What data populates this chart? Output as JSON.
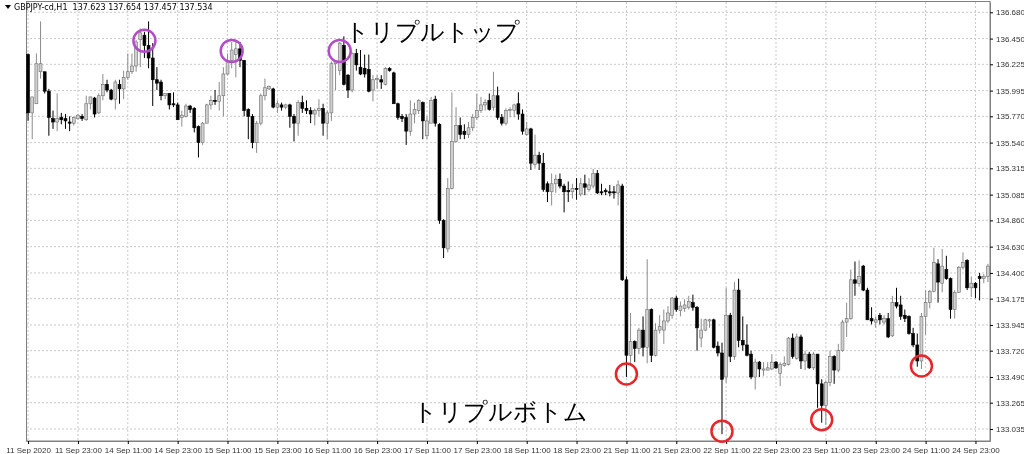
{
  "chart_data": {
    "type": "candlestick",
    "title": "GBPJPY-cd,H1  137.623 137.654 137.457 137.534",
    "annotations": [
      "トリプルトップ",
      "トリプルボトム"
    ],
    "categories": [
      "11 Sep 2020",
      null,
      null,
      null,
      null,
      null,
      null,
      null,
      null,
      null,
      null,
      null,
      "11 Sep 23:00",
      null,
      null,
      null,
      null,
      null,
      null,
      null,
      null,
      null,
      null,
      null,
      "14 Sep 11:00",
      null,
      null,
      null,
      null,
      null,
      null,
      null,
      null,
      null,
      null,
      null,
      "14 Sep 23:00",
      null,
      null,
      null,
      null,
      null,
      null,
      null,
      null,
      null,
      null,
      null,
      "15 Sep 11:00",
      null,
      null,
      null,
      null,
      null,
      null,
      null,
      null,
      null,
      null,
      null,
      "15 Sep 23:00",
      null,
      null,
      null,
      null,
      null,
      null,
      null,
      null,
      null,
      null,
      null,
      "16 Sep 11:00",
      null,
      null,
      null,
      null,
      null,
      null,
      null,
      null,
      null,
      null,
      null,
      "16 Sep 23:00",
      null,
      null,
      null,
      null,
      null,
      null,
      null,
      null,
      null,
      null,
      null,
      "17 Sep 11:00",
      null,
      null,
      null,
      null,
      null,
      null,
      null,
      null,
      null,
      null,
      null,
      "17 Sep 23:00",
      null,
      null,
      null,
      null,
      null,
      null,
      null,
      null,
      null,
      null,
      null,
      "18 Sep 11:00",
      null,
      null,
      null,
      null,
      null,
      null,
      null,
      null,
      null,
      null,
      null,
      "18 Sep 23:00",
      null,
      null,
      null,
      null,
      null,
      null,
      null,
      null,
      null,
      null,
      null,
      "21 Sep 11:00",
      null,
      null,
      null,
      null,
      null,
      null,
      null,
      null,
      null,
      null,
      null,
      "21 Sep 23:00",
      null,
      null,
      null,
      null,
      null,
      null,
      null,
      null,
      null,
      null,
      null,
      "22 Sep 11:00",
      null,
      null,
      null,
      null,
      null,
      null,
      null,
      null,
      null,
      null,
      null,
      "22 Sep 23:00",
      null,
      null,
      null,
      null,
      null,
      null,
      null,
      null,
      null,
      null,
      null,
      "23 Sep 11:00",
      null,
      null,
      null,
      null,
      null,
      null,
      null,
      null,
      null,
      null,
      null,
      "23 Sep 23:00",
      null,
      null,
      null,
      null,
      null,
      null,
      null,
      null,
      null,
      null,
      null,
      "24 Sep 11:00",
      null,
      null,
      null,
      null,
      null,
      null,
      null,
      null,
      null,
      null,
      null,
      "24 Sep 23:00",
      null,
      null,
      null
    ],
    "ohlc": [
      [
        136.31,
        136.32,
        135.73,
        135.8
      ],
      [
        135.8,
        135.94,
        135.57,
        135.94
      ],
      [
        135.88,
        136.32,
        135.88,
        136.23
      ],
      [
        136.16,
        136.6,
        136.1,
        136.23
      ],
      [
        136.16,
        136.16,
        135.97,
        135.99
      ],
      [
        135.99,
        136.01,
        135.6,
        135.76
      ],
      [
        135.75,
        135.82,
        135.66,
        135.72
      ],
      [
        135.72,
        135.97,
        135.64,
        135.75
      ],
      [
        135.76,
        135.8,
        135.7,
        135.74
      ],
      [
        135.75,
        135.79,
        135.66,
        135.73
      ],
      [
        135.72,
        135.77,
        135.64,
        135.71
      ],
      [
        135.71,
        135.77,
        135.69,
        135.76
      ],
      [
        135.75,
        135.79,
        135.74,
        135.78
      ],
      [
        135.77,
        135.79,
        135.73,
        135.75
      ],
      [
        135.74,
        135.95,
        135.73,
        135.88
      ],
      [
        135.88,
        135.94,
        135.83,
        135.94
      ],
      [
        135.93,
        135.94,
        135.76,
        135.79
      ],
      [
        135.8,
        135.97,
        135.79,
        135.95
      ],
      [
        135.95,
        136.14,
        135.91,
        136.05
      ],
      [
        136.05,
        136.09,
        135.98,
        136.0
      ],
      [
        136.0,
        136.01,
        135.91,
        135.92
      ],
      [
        135.92,
        136.09,
        135.83,
        136.07
      ],
      [
        136.05,
        136.09,
        135.88,
        136.01
      ],
      [
        136.01,
        136.17,
        135.92,
        136.11
      ],
      [
        136.11,
        136.32,
        136.09,
        136.16
      ],
      [
        136.16,
        136.32,
        136.14,
        136.21
      ],
      [
        136.21,
        136.44,
        136.16,
        136.42
      ],
      [
        136.44,
        136.54,
        136.2,
        136.5
      ],
      [
        136.48,
        136.51,
        136.28,
        136.39
      ],
      [
        136.39,
        136.6,
        136.19,
        136.28
      ],
      [
        136.28,
        136.41,
        135.86,
        136.09
      ],
      [
        136.09,
        136.2,
        136.0,
        136.06
      ],
      [
        136.07,
        136.09,
        135.91,
        135.95
      ],
      [
        135.95,
        135.97,
        135.92,
        135.97
      ],
      [
        135.97,
        135.97,
        135.83,
        135.87
      ],
      [
        135.88,
        135.98,
        135.85,
        135.87
      ],
      [
        135.87,
        135.89,
        135.74,
        135.74
      ],
      [
        135.76,
        135.82,
        135.68,
        135.78
      ],
      [
        135.77,
        135.88,
        135.76,
        135.86
      ],
      [
        135.86,
        135.87,
        135.8,
        135.83
      ],
      [
        135.84,
        135.85,
        135.63,
        135.67
      ],
      [
        135.68,
        135.69,
        135.41,
        135.54
      ],
      [
        135.54,
        135.72,
        135.52,
        135.71
      ],
      [
        135.71,
        135.88,
        135.71,
        135.87
      ],
      [
        135.87,
        135.95,
        135.83,
        135.91
      ],
      [
        135.91,
        136.0,
        135.87,
        135.9
      ],
      [
        135.9,
        136.07,
        135.82,
        135.95
      ],
      [
        135.95,
        136.2,
        135.77,
        136.14
      ],
      [
        136.14,
        136.32,
        136.13,
        136.26
      ],
      [
        136.26,
        136.42,
        136.19,
        136.35
      ],
      [
        136.31,
        136.44,
        136.11,
        136.36
      ],
      [
        136.36,
        136.42,
        136.2,
        136.26
      ],
      [
        136.26,
        136.26,
        135.77,
        135.82
      ],
      [
        135.83,
        135.84,
        135.57,
        135.77
      ],
      [
        135.77,
        135.79,
        135.49,
        135.54
      ],
      [
        135.54,
        135.73,
        135.45,
        135.71
      ],
      [
        135.71,
        135.97,
        135.69,
        135.95
      ],
      [
        135.95,
        136.1,
        135.91,
        136.02
      ],
      [
        136.01,
        136.04,
        136.0,
        136.03
      ],
      [
        136.01,
        136.02,
        135.84,
        135.85
      ],
      [
        135.85,
        135.91,
        135.8,
        135.88
      ],
      [
        135.87,
        135.89,
        135.82,
        135.85
      ],
      [
        135.85,
        135.88,
        135.83,
        135.87
      ],
      [
        135.87,
        135.88,
        135.67,
        135.77
      ],
      [
        135.77,
        135.79,
        135.55,
        135.71
      ],
      [
        135.71,
        135.91,
        135.6,
        135.89
      ],
      [
        135.89,
        135.95,
        135.8,
        135.84
      ],
      [
        135.84,
        135.91,
        135.79,
        135.82
      ],
      [
        135.82,
        135.85,
        135.71,
        135.79
      ],
      [
        135.79,
        135.84,
        135.69,
        135.82
      ],
      [
        135.82,
        135.92,
        135.77,
        135.84
      ],
      [
        135.84,
        135.88,
        135.6,
        135.71
      ],
      [
        135.71,
        135.82,
        135.57,
        135.8
      ],
      [
        135.8,
        136.25,
        135.73,
        136.23
      ],
      [
        136.23,
        136.26,
        136.0,
        136.25
      ],
      [
        136.17,
        136.42,
        136.13,
        136.41
      ],
      [
        136.39,
        136.47,
        136.04,
        136.05
      ],
      [
        136.13,
        136.14,
        135.93,
        136.0
      ],
      [
        136.0,
        136.33,
        135.98,
        136.32
      ],
      [
        136.32,
        136.36,
        136.17,
        136.22
      ],
      [
        136.2,
        136.35,
        136.13,
        136.14
      ],
      [
        136.19,
        136.31,
        136.11,
        136.14
      ],
      [
        136.18,
        136.31,
        135.98,
        135.99
      ],
      [
        136.0,
        136.13,
        135.9,
        136.09
      ],
      [
        136.09,
        136.13,
        136.01,
        136.1
      ],
      [
        136.09,
        136.13,
        136.01,
        136.07
      ],
      [
        136.05,
        136.2,
        136.04,
        136.19
      ],
      [
        136.19,
        136.2,
        136.16,
        136.17
      ],
      [
        136.15,
        136.16,
        135.88,
        135.88
      ],
      [
        135.88,
        135.89,
        135.74,
        135.76
      ],
      [
        135.77,
        135.79,
        135.72,
        135.75
      ],
      [
        135.76,
        135.79,
        135.52,
        135.64
      ],
      [
        135.64,
        135.91,
        135.6,
        135.79
      ],
      [
        135.79,
        135.89,
        135.71,
        135.83
      ],
      [
        135.82,
        135.92,
        135.79,
        135.91
      ],
      [
        135.89,
        135.9,
        135.57,
        135.73
      ],
      [
        135.6,
        135.77,
        135.57,
        135.73
      ],
      [
        135.71,
        135.94,
        135.71,
        135.91
      ],
      [
        135.92,
        135.95,
        135.68,
        135.71
      ],
      [
        135.7,
        135.71,
        134.83,
        134.86
      ],
      [
        134.86,
        134.87,
        134.53,
        134.62
      ],
      [
        134.61,
        135.23,
        134.58,
        135.14
      ],
      [
        135.14,
        135.98,
        135.13,
        135.55
      ],
      [
        135.55,
        135.85,
        135.54,
        135.69
      ],
      [
        135.69,
        135.76,
        135.57,
        135.61
      ],
      [
        135.64,
        135.7,
        135.57,
        135.61
      ],
      [
        135.61,
        135.72,
        135.58,
        135.67
      ],
      [
        135.67,
        135.79,
        135.64,
        135.76
      ],
      [
        135.76,
        135.97,
        135.74,
        135.82
      ],
      [
        135.82,
        135.94,
        135.8,
        135.87
      ],
      [
        135.87,
        135.92,
        135.82,
        135.89
      ],
      [
        135.91,
        135.97,
        135.82,
        135.83
      ],
      [
        135.85,
        136.16,
        135.82,
        135.95
      ],
      [
        135.95,
        136.03,
        135.74,
        135.76
      ],
      [
        135.76,
        135.79,
        135.69,
        135.71
      ],
      [
        135.71,
        135.84,
        135.69,
        135.82
      ],
      [
        135.82,
        135.85,
        135.76,
        135.83
      ],
      [
        135.82,
        135.88,
        135.76,
        135.87
      ],
      [
        135.88,
        135.98,
        135.74,
        135.79
      ],
      [
        135.79,
        135.83,
        135.61,
        135.64
      ],
      [
        135.61,
        135.72,
        135.6,
        135.66
      ],
      [
        135.66,
        135.67,
        135.3,
        135.36
      ],
      [
        135.35,
        135.61,
        135.32,
        135.43
      ],
      [
        135.43,
        135.46,
        135.3,
        135.36
      ],
      [
        135.36,
        135.45,
        135.11,
        135.13
      ],
      [
        135.18,
        135.2,
        135.02,
        135.11
      ],
      [
        135.11,
        135.27,
        134.99,
        135.18
      ],
      [
        135.18,
        135.26,
        135.1,
        135.22
      ],
      [
        135.22,
        135.27,
        135.14,
        135.16
      ],
      [
        135.16,
        135.18,
        134.93,
        135.11
      ],
      [
        135.12,
        135.2,
        135.02,
        135.11
      ],
      [
        135.11,
        135.18,
        135.05,
        135.14
      ],
      [
        135.14,
        135.23,
        135.04,
        135.13
      ],
      [
        135.09,
        135.23,
        135.07,
        135.18
      ],
      [
        135.18,
        135.26,
        135.08,
        135.15
      ],
      [
        135.13,
        135.23,
        135.11,
        135.17
      ],
      [
        135.16,
        135.31,
        135.14,
        135.27
      ],
      [
        135.27,
        135.3,
        135.09,
        135.1
      ],
      [
        135.11,
        135.18,
        135.08,
        135.1
      ],
      [
        135.12,
        135.14,
        135.08,
        135.11
      ],
      [
        135.11,
        135.17,
        135.07,
        135.1
      ],
      [
        135.11,
        135.16,
        135.05,
        135.1
      ],
      [
        135.1,
        135.21,
        134.99,
        135.17
      ],
      [
        135.16,
        135.18,
        134.33,
        134.34
      ],
      [
        134.34,
        134.37,
        133.49,
        133.68
      ],
      [
        133.68,
        134.05,
        133.59,
        133.8
      ],
      [
        133.8,
        133.81,
        133.62,
        133.74
      ],
      [
        133.74,
        133.92,
        133.69,
        133.9
      ],
      [
        133.9,
        134.02,
        133.67,
        133.75
      ],
      [
        133.75,
        134.52,
        133.61,
        134.08
      ],
      [
        134.08,
        134.09,
        133.62,
        133.68
      ],
      [
        133.68,
        133.96,
        133.67,
        133.9
      ],
      [
        133.9,
        134.03,
        133.87,
        133.93
      ],
      [
        133.9,
        134.08,
        133.78,
        133.98
      ],
      [
        133.98,
        134.11,
        133.96,
        134.05
      ],
      [
        134.03,
        134.19,
        134.0,
        134.18
      ],
      [
        134.18,
        134.2,
        134.06,
        134.08
      ],
      [
        134.07,
        134.15,
        134.02,
        134.11
      ],
      [
        134.09,
        134.17,
        134.06,
        134.12
      ],
      [
        134.1,
        134.2,
        134.08,
        134.15
      ],
      [
        134.14,
        134.21,
        134.07,
        134.1
      ],
      [
        134.1,
        134.11,
        133.72,
        133.92
      ],
      [
        133.83,
        134.0,
        133.75,
        133.9
      ],
      [
        133.9,
        134.0,
        133.89,
        133.99
      ],
      [
        133.98,
        134.0,
        133.92,
        133.99
      ],
      [
        133.99,
        134.0,
        133.74,
        133.75
      ],
      [
        133.76,
        133.8,
        133.67,
        133.7
      ],
      [
        133.7,
        133.79,
        132.99,
        133.47
      ],
      [
        133.49,
        134.27,
        133.44,
        134.03
      ],
      [
        134.03,
        134.05,
        133.62,
        133.67
      ],
      [
        133.67,
        134.32,
        133.64,
        134.25
      ],
      [
        134.25,
        134.35,
        133.75,
        133.81
      ],
      [
        133.81,
        134.02,
        133.72,
        133.77
      ],
      [
        133.77,
        133.95,
        133.67,
        133.68
      ],
      [
        133.69,
        133.72,
        133.47,
        133.49
      ],
      [
        133.49,
        133.65,
        133.38,
        133.62
      ],
      [
        133.62,
        133.63,
        133.49,
        133.56
      ],
      [
        133.55,
        133.62,
        133.5,
        133.56
      ],
      [
        133.55,
        133.62,
        133.55,
        133.57
      ],
      [
        133.56,
        133.69,
        133.55,
        133.62
      ],
      [
        133.62,
        133.63,
        133.56,
        133.57
      ],
      [
        133.52,
        133.62,
        133.41,
        133.6
      ],
      [
        133.59,
        133.67,
        133.58,
        133.61
      ],
      [
        133.6,
        133.84,
        133.59,
        133.83
      ],
      [
        133.83,
        133.87,
        133.65,
        133.67
      ],
      [
        133.65,
        133.87,
        133.64,
        133.84
      ],
      [
        133.84,
        133.86,
        133.56,
        133.63
      ],
      [
        133.63,
        133.72,
        133.55,
        133.69
      ],
      [
        133.69,
        133.71,
        133.56,
        133.57
      ],
      [
        133.57,
        133.71,
        133.55,
        133.69
      ],
      [
        133.69,
        133.69,
        133.22,
        133.43
      ],
      [
        133.43,
        133.47,
        133.09,
        133.24
      ],
      [
        133.24,
        133.46,
        133.07,
        133.44
      ],
      [
        133.44,
        133.72,
        133.41,
        133.67
      ],
      [
        133.67,
        133.68,
        133.43,
        133.55
      ],
      [
        133.55,
        133.78,
        133.53,
        133.72
      ],
      [
        133.72,
        133.99,
        133.71,
        133.97
      ],
      [
        133.97,
        134.14,
        133.84,
        134.0
      ],
      [
        134.0,
        134.43,
        133.99,
        134.34
      ],
      [
        134.34,
        134.5,
        134.2,
        134.31
      ],
      [
        134.31,
        134.51,
        134.28,
        134.37
      ],
      [
        134.46,
        134.47,
        134.24,
        134.25
      ],
      [
        134.25,
        134.27,
        133.99,
        133.99
      ],
      [
        134.0,
        134.1,
        133.95,
        133.98
      ],
      [
        133.97,
        134.02,
        133.92,
        133.99
      ],
      [
        134.03,
        134.05,
        133.95,
        133.99
      ],
      [
        133.97,
        134.03,
        133.95,
        134.0
      ],
      [
        134.0,
        134.05,
        133.83,
        133.84
      ],
      [
        133.85,
        134.2,
        133.84,
        134.14
      ],
      [
        134.14,
        134.27,
        134.09,
        134.11
      ],
      [
        134.12,
        134.2,
        133.99,
        134.02
      ],
      [
        134.03,
        134.08,
        133.97,
        134.0
      ],
      [
        134.02,
        134.03,
        133.86,
        133.87
      ],
      [
        133.87,
        133.92,
        133.75,
        133.77
      ],
      [
        133.77,
        133.87,
        133.58,
        133.63
      ],
      [
        133.63,
        134.05,
        133.56,
        134.02
      ],
      [
        134.02,
        134.25,
        133.86,
        134.14
      ],
      [
        134.14,
        134.25,
        134.09,
        134.24
      ],
      [
        134.24,
        134.62,
        134.23,
        134.49
      ],
      [
        134.48,
        134.52,
        134.14,
        134.32
      ],
      [
        134.31,
        134.61,
        134.23,
        134.46
      ],
      [
        134.43,
        134.55,
        134.34,
        134.35
      ],
      [
        134.35,
        134.36,
        134.0,
        134.08
      ],
      [
        134.08,
        134.25,
        134.0,
        134.23
      ],
      [
        134.23,
        134.46,
        134.23,
        134.45
      ],
      [
        134.45,
        134.58,
        134.43,
        134.49
      ],
      [
        134.51,
        134.52,
        134.25,
        134.27
      ],
      [
        134.27,
        134.37,
        134.19,
        134.31
      ],
      [
        134.31,
        134.32,
        134.18,
        134.27
      ],
      [
        134.37,
        134.4,
        134.16,
        134.35
      ],
      [
        134.35,
        134.39,
        134.31,
        134.37
      ],
      [
        134.37,
        134.48,
        134.32,
        134.46
      ]
    ],
    "ylim": [
      132.93,
      136.77
    ],
    "yticks": [
      {
        "value": 133.035,
        "label": "133.035"
      },
      {
        "value": 133.265,
        "label": "133.265"
      },
      {
        "value": 133.49,
        "label": "133.490"
      },
      {
        "value": 133.72,
        "label": "133.720"
      },
      {
        "value": 133.945,
        "label": "133.945"
      },
      {
        "value": 134.175,
        "label": "134.175"
      },
      {
        "value": 134.4,
        "label": "134.400"
      },
      {
        "value": 134.63,
        "label": "134.630"
      },
      {
        "value": 134.86,
        "label": "134.860"
      },
      {
        "value": 135.085,
        "label": "135.085"
      },
      {
        "value": 135.315,
        "label": "135.315"
      },
      {
        "value": 135.54,
        "label": "135.540"
      },
      {
        "value": 135.77,
        "label": "135.770"
      },
      {
        "value": 135.995,
        "label": "135.995"
      },
      {
        "value": 136.225,
        "label": "136.225"
      },
      {
        "value": 136.45,
        "label": "136.450"
      },
      {
        "value": 136.68,
        "label": "136.680"
      }
    ],
    "grid": true
  }
}
